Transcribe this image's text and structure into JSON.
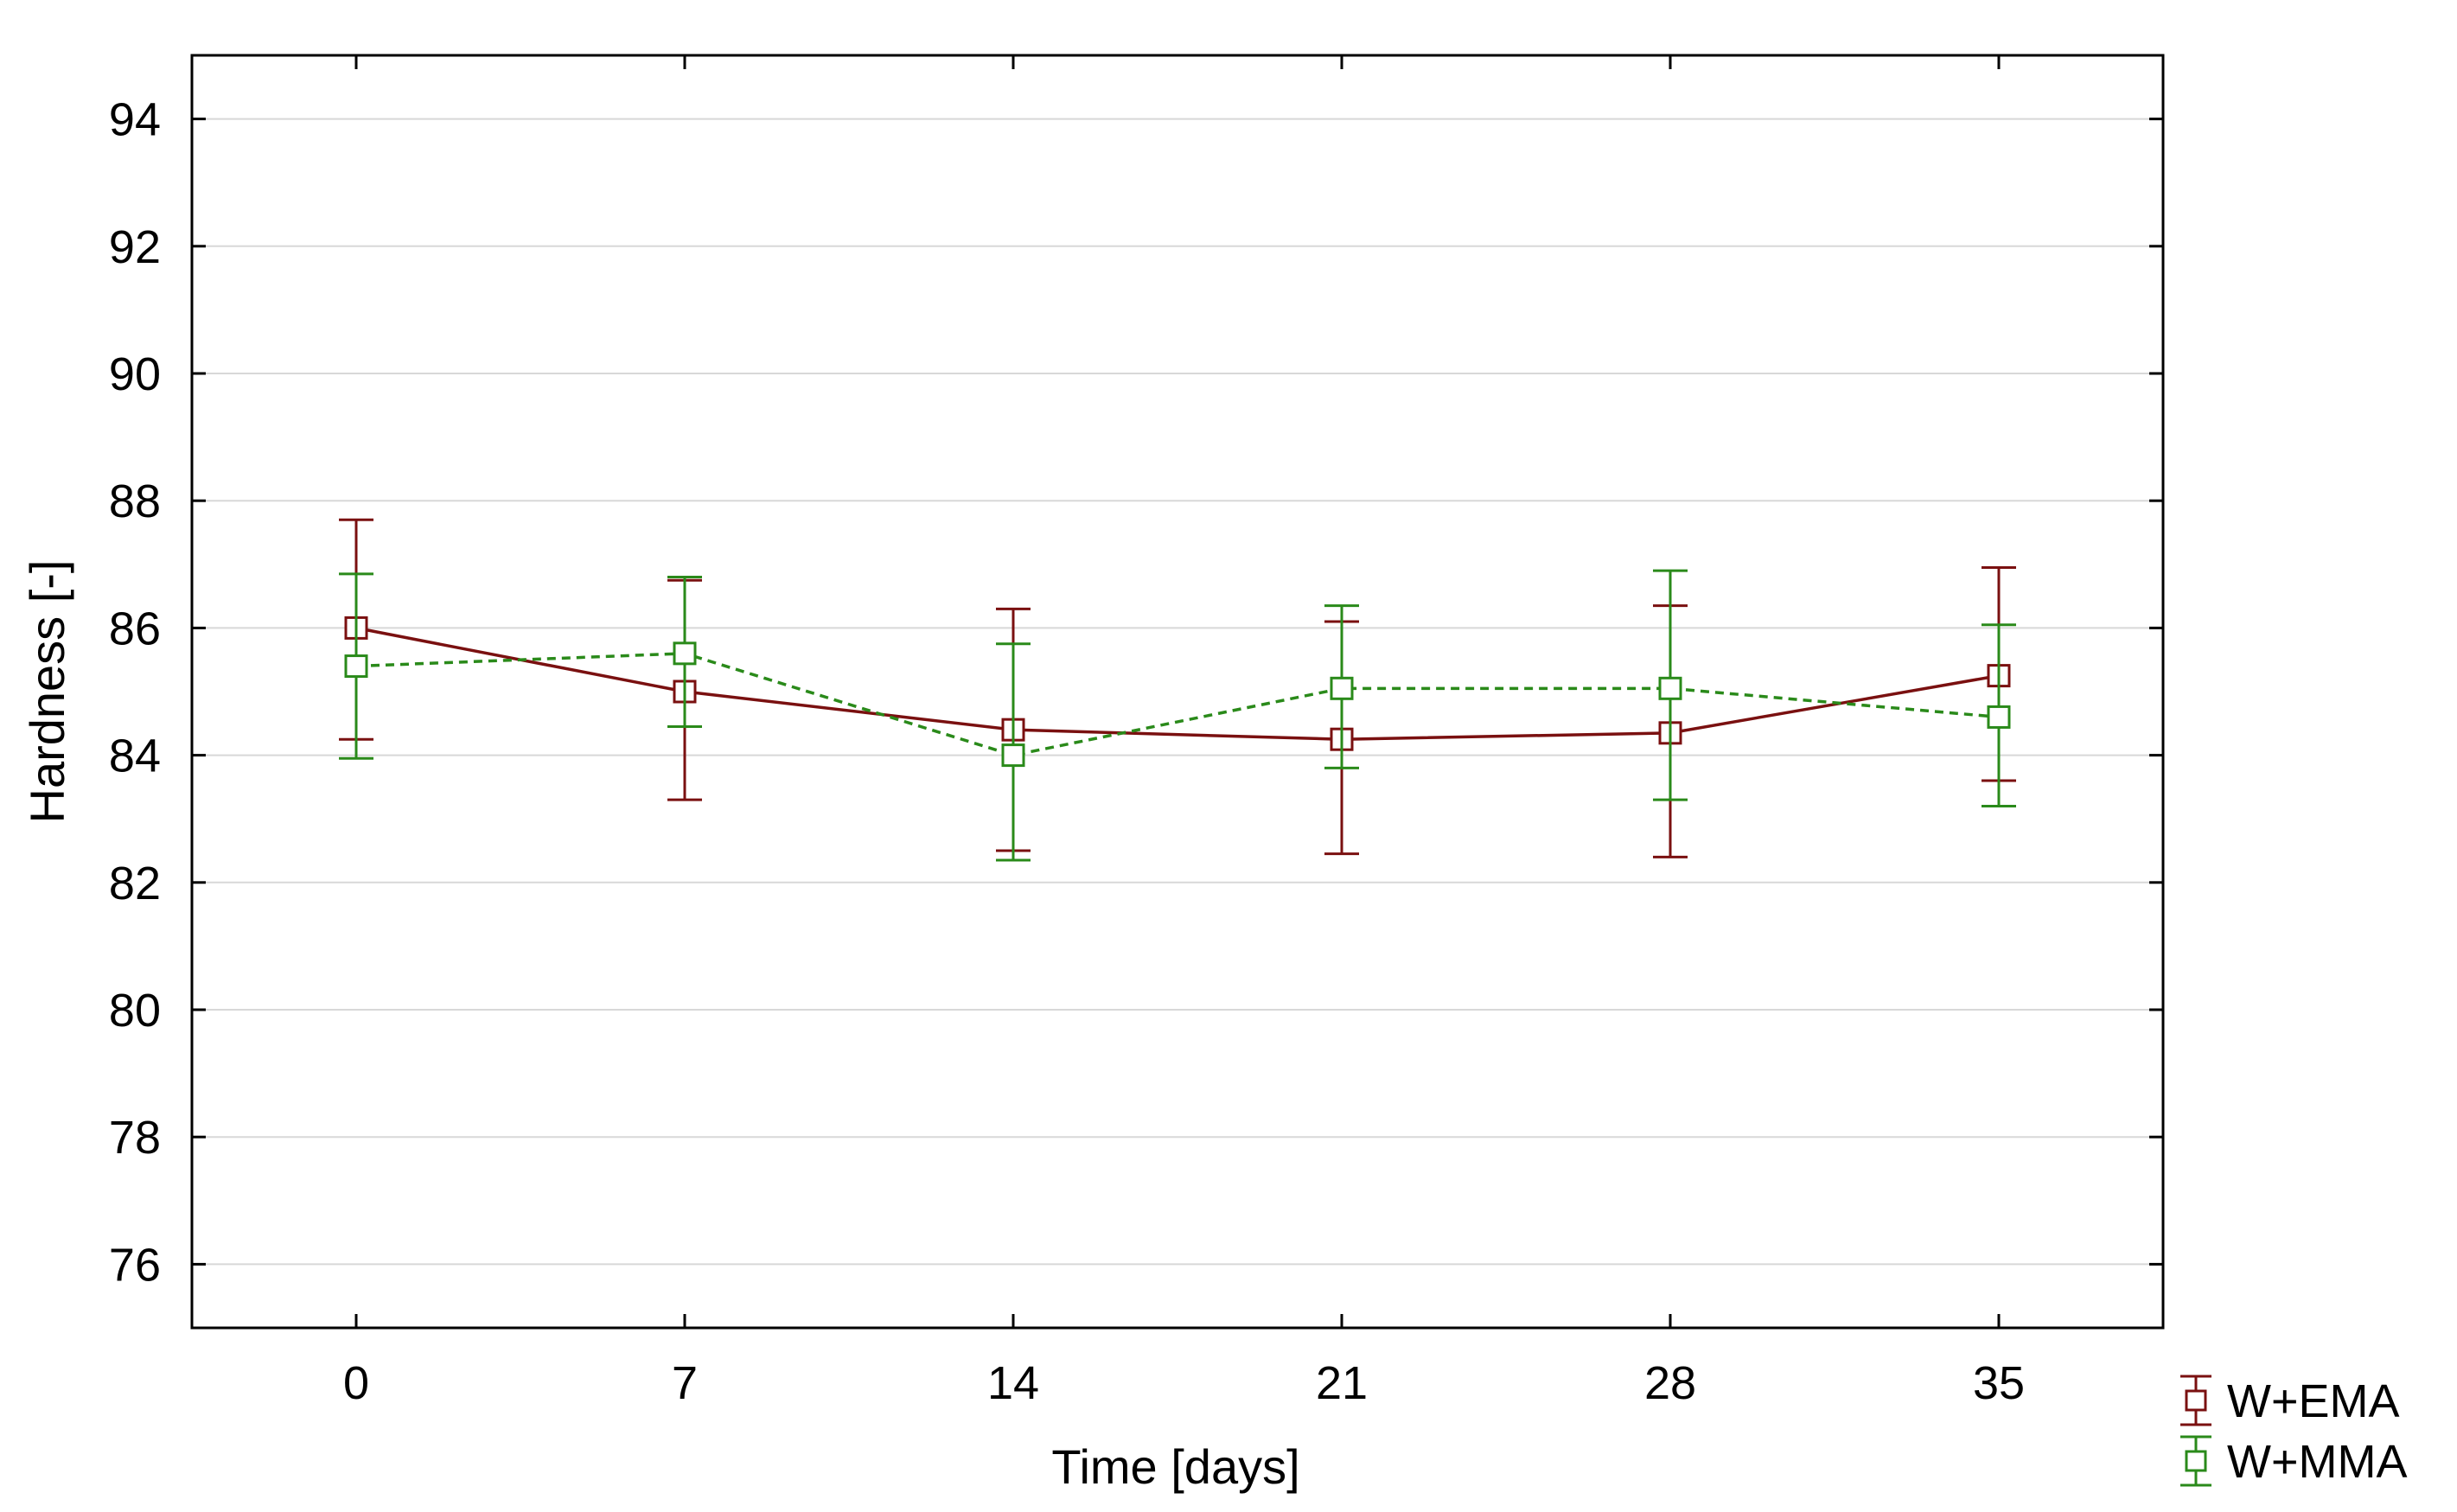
{
  "chart_data": {
    "type": "line",
    "title": "",
    "xlabel": "Time [days]",
    "ylabel": "Hardness [-]",
    "x": [
      0,
      7,
      14,
      21,
      28,
      35
    ],
    "x_tick_labels": [
      "0",
      "7",
      "14",
      "21",
      "28",
      "35"
    ],
    "xlim": [
      -3.5,
      38.5
    ],
    "ylim": [
      75,
      95
    ],
    "y_ticks": [
      76,
      78,
      80,
      82,
      84,
      86,
      88,
      90,
      92,
      94
    ],
    "y_tick_labels": [
      "76",
      "78",
      "80",
      "82",
      "84",
      "86",
      "88",
      "90",
      "92",
      "94"
    ],
    "grid": true,
    "legend_position": "bottom-right outside",
    "series": [
      {
        "name": "W+EMA",
        "color": "#7a1010",
        "line_style": "solid",
        "marker": "square",
        "values": [
          86.0,
          85.0,
          84.4,
          84.25,
          84.35,
          85.25
        ],
        "err_low": [
          84.25,
          83.3,
          82.5,
          82.45,
          82.4,
          83.6
        ],
        "err_high": [
          87.7,
          86.75,
          86.3,
          86.1,
          86.35,
          86.95
        ]
      },
      {
        "name": "W+MMA",
        "color": "#2a8a1a",
        "line_style": "dashed",
        "marker": "square",
        "values": [
          85.4,
          85.6,
          84.0,
          85.05,
          85.05,
          84.6
        ],
        "err_low": [
          83.95,
          84.45,
          82.35,
          83.8,
          83.3,
          83.2
        ],
        "err_high": [
          86.85,
          86.8,
          85.75,
          86.35,
          86.9,
          86.05
        ]
      }
    ]
  }
}
